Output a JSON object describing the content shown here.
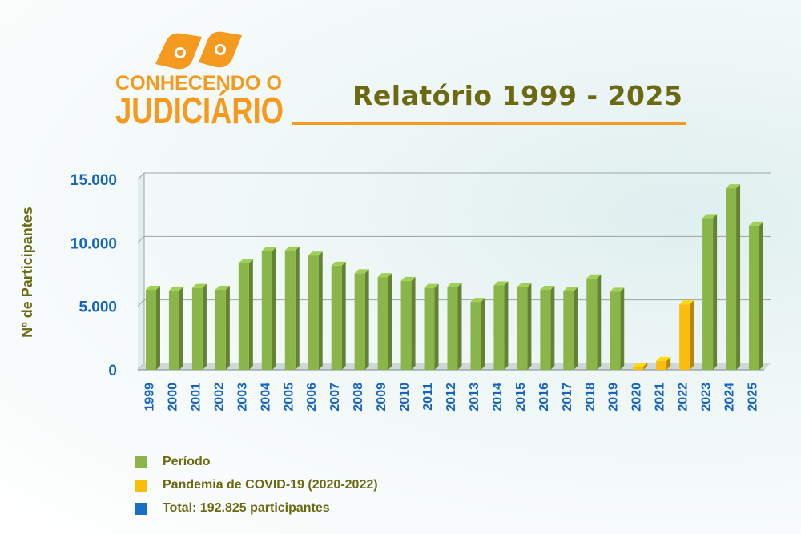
{
  "logo": {
    "line1": "CONHECENDO O",
    "line2": "JUDICIÁRIO",
    "color": "#f59a1e"
  },
  "header": {
    "title": "Relatório 1999 - 2025"
  },
  "colors": {
    "periodo": "#8ab548",
    "covid": "#fbbd0d",
    "total": "#1a6fc4",
    "axis_text": "#1565c0",
    "label_text": "#6b6a12"
  },
  "legend": [
    {
      "label": "Período",
      "color": "#8ab548"
    },
    {
      "label": "Pandemia de COVID-19 (2020-2022)",
      "color": "#fbbd0d"
    },
    {
      "label": "Total: 192.825 participantes",
      "color": "#1a6fc4"
    }
  ],
  "chart_data": {
    "type": "bar",
    "title": "Relatório 1999 - 2025",
    "ylabel": "Nº de Participantes",
    "xlabel": "",
    "ylim": [
      0,
      15000
    ],
    "yticks": [
      0,
      5000,
      10000,
      15000
    ],
    "ytick_labels": [
      "0",
      "5.000",
      "10.000",
      "15.000"
    ],
    "grid": true,
    "legend_position": "bottom-left",
    "categories": [
      "1999",
      "2000",
      "2001",
      "2002",
      "2003",
      "2004",
      "2005",
      "2006",
      "2007",
      "2008",
      "2009",
      "2010",
      "2011",
      "2012",
      "2013",
      "2014",
      "2015",
      "2016",
      "2017",
      "2018",
      "2019",
      "2020",
      "2021",
      "2022",
      "2023",
      "2024",
      "2025"
    ],
    "values": [
      6300,
      6250,
      6450,
      6300,
      8400,
      9350,
      9400,
      9000,
      8200,
      7600,
      7300,
      7000,
      6450,
      6550,
      5350,
      6650,
      6500,
      6300,
      6200,
      7200,
      6150,
      250,
      700,
      5150,
      11950,
      14300,
      11350
    ],
    "series": [
      {
        "name": "Período",
        "categories": [
          "1999",
          "2000",
          "2001",
          "2002",
          "2003",
          "2004",
          "2005",
          "2006",
          "2007",
          "2008",
          "2009",
          "2010",
          "2011",
          "2012",
          "2013",
          "2014",
          "2015",
          "2016",
          "2017",
          "2018",
          "2019",
          "2023",
          "2024",
          "2025"
        ]
      },
      {
        "name": "Pandemia de COVID-19 (2020-2022)",
        "categories": [
          "2020",
          "2021",
          "2022"
        ]
      }
    ],
    "total_label": "Total: 192.825 participantes"
  }
}
